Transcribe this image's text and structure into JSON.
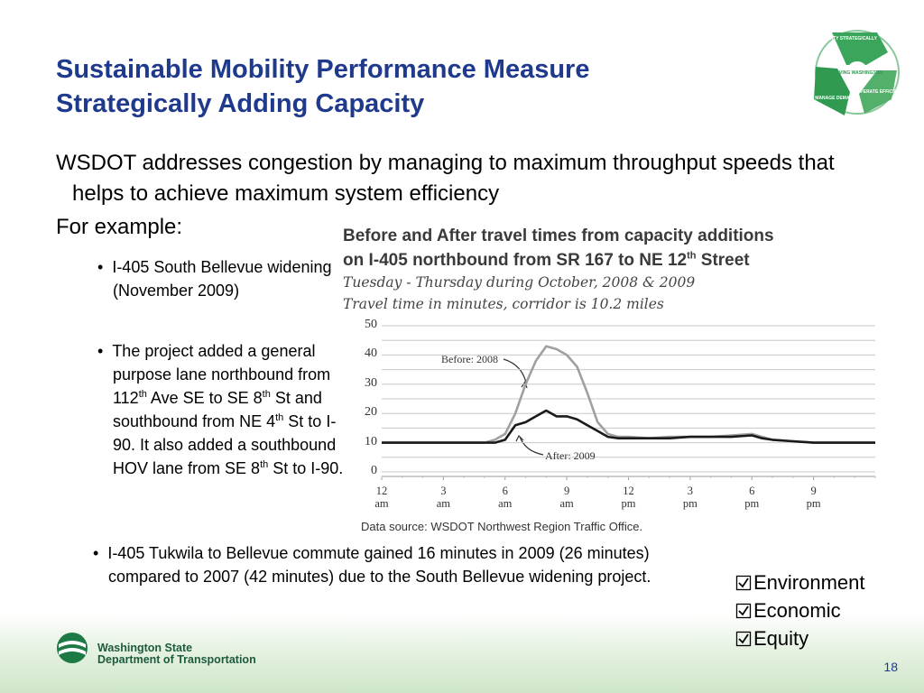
{
  "slide": {
    "title": [
      "Sustainable Mobility Performance Measure",
      "Strategically Adding Capacity"
    ],
    "intro": "WSDOT addresses congestion by managing to maximum throughput speeds that helps to achieve maximum system efficiency",
    "example_label": "For example:",
    "sub_bullets": [
      [
        "I-405 South Bellevue widening (November 2009)"
      ],
      [
        "The project added a general purpose lane northbound from 112",
        "th",
        " Ave SE to SE 8",
        "th",
        " St and southbound from NE 4",
        "th",
        " St to I-90.  It also added a southbound HOV lane from SE 8",
        "th",
        " St to I-90."
      ]
    ],
    "bullet": "I-405 Tukwila to Bellevue commute gained 16 minutes in 2009 (26 minutes) compared to 2007 (42 minutes) due to the South Bellevue widening project.",
    "checklist": [
      "Environment",
      "Economic",
      "Equity"
    ],
    "footer": [
      "Washington State",
      "Department of Transportation"
    ],
    "page_number": 18,
    "logo_labels": [
      "ADD CAPACITY STRATEGICALLY",
      "MOVING WASHINGTON",
      "OPERATE EFFICIENTLY",
      "MANAGE DEMAND"
    ]
  },
  "chart_data": {
    "type": "line",
    "title": [
      "Before and After travel times from capacity additions",
      [
        "on I-405 northbound from SR 167 to NE 12",
        "th",
        " Street"
      ]
    ],
    "subtitle": [
      "Tuesday - Thursday during October, 2008 & 2009",
      "Travel time in minutes, corridor is 10.2 miles"
    ],
    "source": "Data source: WSDOT Northwest Region Traffic Office.",
    "annotations": [
      "Before: 2008",
      "After: 2009"
    ],
    "x": [
      0,
      1,
      2,
      3,
      4,
      5,
      5.5,
      6,
      6.5,
      7,
      7.5,
      8,
      8.5,
      9,
      9.5,
      10,
      10.5,
      11,
      11.5,
      12,
      13,
      14,
      15,
      16,
      17,
      18,
      18.5,
      19,
      20,
      21,
      22,
      23,
      24
    ],
    "series": [
      {
        "name": "Before: 2008",
        "color": "#a0a0a0",
        "values": [
          10,
          10,
          10,
          10,
          10,
          10,
          11,
          13,
          20,
          30,
          38,
          43,
          42,
          40,
          36,
          27,
          17,
          13,
          12,
          12,
          11.5,
          12,
          12,
          12,
          12.5,
          13,
          12,
          11,
          10.5,
          10,
          10,
          10,
          10
        ]
      },
      {
        "name": "After: 2009",
        "color": "#1a1a1a",
        "values": [
          10,
          10,
          10,
          10,
          10,
          10,
          10,
          11,
          16,
          17,
          19,
          21,
          19,
          19,
          18,
          16,
          14,
          12,
          11.5,
          11.5,
          11.5,
          11.5,
          12,
          12,
          12,
          12.5,
          11.5,
          11,
          10.5,
          10,
          10,
          10,
          10
        ]
      }
    ],
    "xlim": [
      0,
      24
    ],
    "xticks": [
      {
        "value": 0,
        "label": "12 am"
      },
      {
        "value": 3,
        "label": "3 am"
      },
      {
        "value": 6,
        "label": "6 am"
      },
      {
        "value": 9,
        "label": "9 am"
      },
      {
        "value": 12,
        "label": "12 pm"
      },
      {
        "value": 15,
        "label": "3 pm"
      },
      {
        "value": 18,
        "label": "6 pm"
      },
      {
        "value": 21,
        "label": "9 pm"
      }
    ],
    "ylim": [
      0,
      50
    ],
    "yticks": [
      0,
      10,
      20,
      30,
      40,
      50
    ],
    "ygrid": [
      0,
      5,
      10,
      15,
      20,
      25,
      30,
      35,
      40,
      45,
      50
    ],
    "grid": true
  }
}
